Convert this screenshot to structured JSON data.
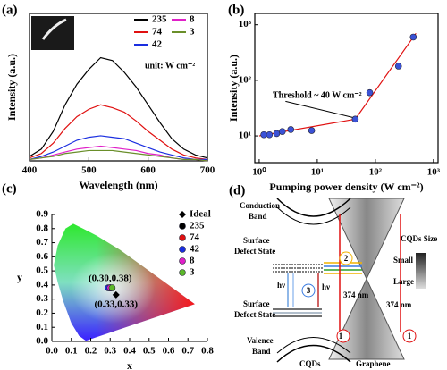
{
  "chart_data": [
    {
      "type": "line",
      "panel_label": "(a)",
      "x_label": "Wavelength (nm)",
      "y_label": "Intensity (a.u.)",
      "unit_note": "unit: W cm⁻²",
      "x": [
        400,
        420,
        440,
        460,
        480,
        500,
        520,
        540,
        560,
        580,
        600,
        620,
        640,
        660,
        680,
        700
      ],
      "xlim": [
        400,
        700
      ],
      "xticks": [
        400,
        500,
        600,
        700
      ],
      "ylim": [
        0,
        100
      ],
      "series": [
        {
          "name": "235",
          "color": "#000000",
          "values": [
            3,
            8,
            20,
            38,
            52,
            62,
            70,
            68,
            60,
            50,
            38,
            26,
            15,
            8,
            4,
            2
          ]
        },
        {
          "name": "74",
          "color": "#e01010",
          "values": [
            2,
            5,
            12,
            22,
            30,
            35,
            38,
            36,
            33,
            27,
            20,
            14,
            8,
            4,
            2,
            1
          ]
        },
        {
          "name": "42",
          "color": "#1a2ee0",
          "values": [
            1,
            3,
            6,
            10,
            14,
            16,
            17,
            16,
            15,
            12,
            9,
            6,
            4,
            2,
            1,
            1
          ]
        },
        {
          "name": "8",
          "color": "#e020c8",
          "values": [
            1,
            2,
            4,
            6,
            8,
            9,
            10,
            9,
            8,
            7,
            5,
            4,
            2,
            1,
            1,
            0
          ]
        },
        {
          "name": "3",
          "color": "#6a8f2a",
          "values": [
            1,
            2,
            3,
            5,
            6,
            7,
            7,
            7,
            6,
            5,
            4,
            3,
            2,
            1,
            1,
            0
          ]
        }
      ]
    },
    {
      "type": "scatter",
      "panel_label": "(b)",
      "x_label": "Pumping power density (W cm⁻²)",
      "y_label": "Intensity (a.u.)",
      "log_x": true,
      "log_y": true,
      "color": "#3b52d6",
      "x": [
        1.2,
        1.5,
        2,
        2.5,
        3.5,
        8,
        45,
        80,
        250,
        450
      ],
      "values": [
        10.5,
        10.5,
        11,
        12,
        13,
        12.5,
        20,
        60,
        180,
        600
      ],
      "fit": {
        "color": "#e01010",
        "x": [
          1,
          45,
          500
        ],
        "values": [
          10,
          20,
          700
        ]
      },
      "annotation": "Threshold ~ 40 W cm⁻²",
      "xlim": [
        0.84,
        1200
      ],
      "xticks": [
        {
          "value": 1,
          "label": "10⁰"
        },
        {
          "value": 10,
          "label": "10¹"
        },
        {
          "value": 100,
          "label": "10²"
        },
        {
          "value": 1000,
          "label": "10³"
        }
      ],
      "ylim": [
        3.3,
        1600
      ],
      "yticks": [
        {
          "value": 10,
          "label": "10¹"
        },
        {
          "value": 100,
          "label": "10²"
        },
        {
          "value": 1000,
          "label": "10³"
        }
      ]
    },
    {
      "type": "scatter",
      "panel_label": "(c)",
      "x_label": "x",
      "y_label": "y",
      "xlim": [
        0,
        0.8
      ],
      "xticks": [
        {
          "value": 0,
          "label": "0.0"
        },
        0.1,
        0.2,
        0.3,
        0.4,
        0.5,
        0.6,
        0.7,
        0.8
      ],
      "ylim": [
        0,
        0.9
      ],
      "yticks": [
        {
          "value": 0,
          "label": "0.0"
        },
        0.1,
        0.2,
        0.3,
        0.4,
        0.5,
        0.6,
        0.7,
        0.8,
        0.9
      ],
      "series": [
        {
          "name": "Ideal",
          "color": "#000000",
          "marker": "diamond",
          "x": [
            0.33
          ],
          "values": [
            0.33
          ]
        },
        {
          "name": "235",
          "color": "#000000",
          "marker": "circle",
          "x": [
            0.3
          ],
          "values": [
            0.38
          ]
        },
        {
          "name": "74",
          "color": "#e01010",
          "marker": "circle",
          "x": [
            0.3
          ],
          "values": [
            0.38
          ]
        },
        {
          "name": "42",
          "color": "#1a2ee0",
          "marker": "circle",
          "x": [
            0.29
          ],
          "values": [
            0.38
          ]
        },
        {
          "name": "8",
          "color": "#e020c8",
          "marker": "circle",
          "x": [
            0.3
          ],
          "values": [
            0.38
          ]
        },
        {
          "name": "3",
          "color": "#5cb82a",
          "marker": "circle",
          "x": [
            0.31
          ],
          "values": [
            0.38
          ]
        }
      ],
      "annotations": [
        "(0.30,0.38)",
        "(0.33,0.33)"
      ]
    }
  ],
  "diagram": {
    "panel_label": "(d)",
    "conduction_band": [
      "Conduction",
      "Band"
    ],
    "surface_defect_upper": [
      "Surface",
      "Defect State"
    ],
    "surface_defect_lower": [
      "Surface",
      "Defect State"
    ],
    "valence_band": [
      "Valence",
      "Band"
    ],
    "emission": [
      "hν",
      "hν"
    ],
    "excitation": [
      "374 nm",
      "374 nm"
    ],
    "steps": [
      "1",
      "2",
      "3",
      "1"
    ],
    "cqds": "CQDs",
    "graphene": "Graphene",
    "size_legend": {
      "title": "CQDs Size",
      "small": "Small",
      "large": "Large"
    }
  }
}
